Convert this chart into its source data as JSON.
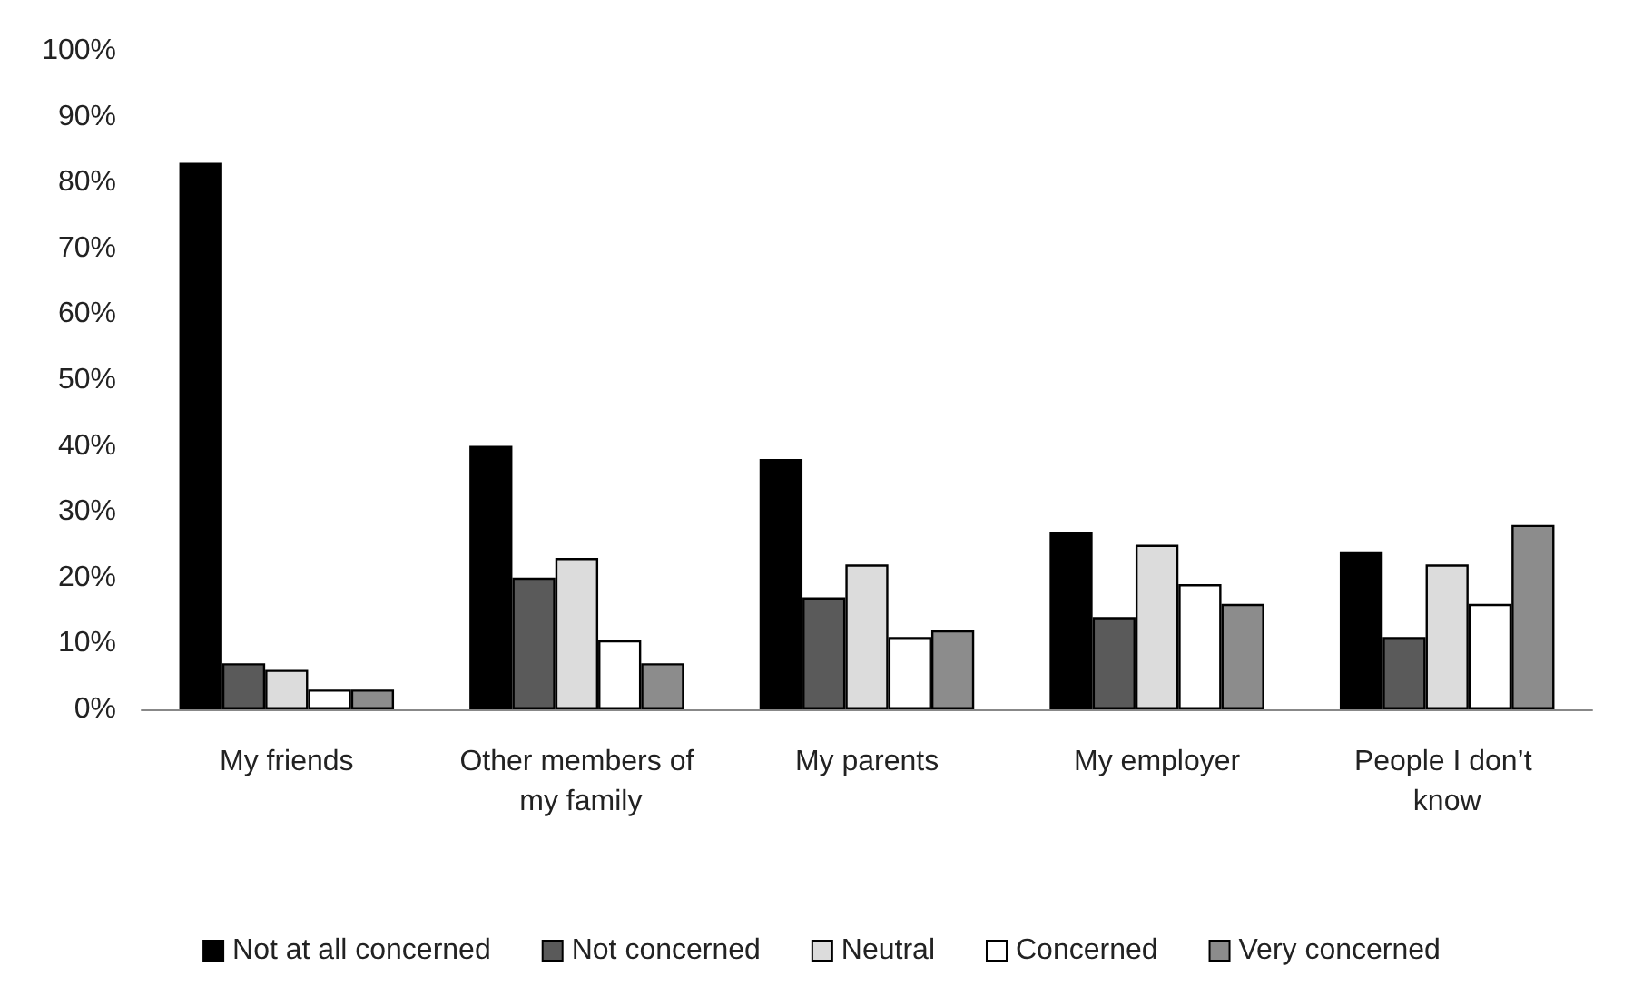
{
  "chart_data": {
    "type": "bar",
    "categories": [
      "My friends",
      "Other members of my family",
      "My parents",
      "My employer",
      "People I don’t know"
    ],
    "series": [
      {
        "name": "Not at all concerned",
        "color": "#000000",
        "values": [
          83,
          40,
          38,
          27,
          24
        ]
      },
      {
        "name": "Not concerned",
        "color": "#5a5a5a",
        "values": [
          7,
          20,
          17,
          14,
          11
        ]
      },
      {
        "name": "Neutral",
        "color": "#dcdcdc",
        "values": [
          6,
          23,
          22,
          25,
          22
        ]
      },
      {
        "name": "Concerned",
        "color": "#ffffff",
        "values": [
          3,
          10.5,
          11,
          19,
          16
        ]
      },
      {
        "name": "Very concerned",
        "color": "#8c8c8c",
        "values": [
          3,
          7,
          12,
          16,
          28
        ]
      }
    ],
    "ylim": [
      0,
      100
    ],
    "yticks": [
      {
        "value": 0,
        "label": "0%"
      },
      {
        "value": 10,
        "label": "10%"
      },
      {
        "value": 20,
        "label": "20%"
      },
      {
        "value": 30,
        "label": "30%"
      },
      {
        "value": 40,
        "label": "40%"
      },
      {
        "value": 50,
        "label": "50%"
      },
      {
        "value": 60,
        "label": "60%"
      },
      {
        "value": 70,
        "label": "70%"
      },
      {
        "value": 80,
        "label": "80%"
      },
      {
        "value": 90,
        "label": "90%"
      },
      {
        "value": 100,
        "label": "100%"
      }
    ],
    "grid": false,
    "legend": "bottom"
  }
}
